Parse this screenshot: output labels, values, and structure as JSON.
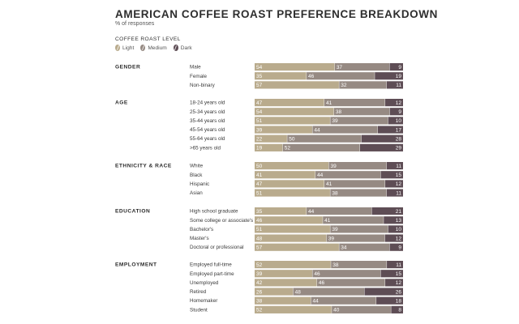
{
  "title": "AMERICAN COFFEE ROAST PREFERENCE BREAKDOWN",
  "subtitle": "% of responses",
  "legend": {
    "title": "COFFEE ROAST LEVEL",
    "items": [
      {
        "label": "Light",
        "color": "#b9ab8d"
      },
      {
        "label": "Medium",
        "color": "#968a83"
      },
      {
        "label": "Dark",
        "color": "#5e4d55"
      }
    ]
  },
  "chart_data": {
    "type": "bar",
    "orientation": "horizontal",
    "stacked": true,
    "unit": "% of responses",
    "series_names": [
      "Light",
      "Medium",
      "Dark"
    ],
    "colors": [
      "#b9ab8d",
      "#968a83",
      "#5e4d55"
    ],
    "groups": [
      {
        "name": "GENDER",
        "rows": [
          {
            "label": "Male",
            "values": [
              54,
              37,
              9
            ]
          },
          {
            "label": "Female",
            "values": [
              35,
              46,
              19
            ]
          },
          {
            "label": "Non-binary",
            "values": [
              57,
              32,
              11
            ]
          }
        ]
      },
      {
        "name": "AGE",
        "rows": [
          {
            "label": "18-24 years old",
            "values": [
              47,
              41,
              12
            ]
          },
          {
            "label": "25-34 years old",
            "values": [
              54,
              38,
              9
            ]
          },
          {
            "label": "35-44 years old",
            "values": [
              51,
              39,
              10
            ]
          },
          {
            "label": "45-54 years old",
            "values": [
              39,
              44,
              17
            ]
          },
          {
            "label": "55-64 years old",
            "values": [
              22,
              50,
              28
            ]
          },
          {
            "label": ">65 years old",
            "values": [
              19,
              52,
              29
            ]
          }
        ]
      },
      {
        "name": "ETHNICITY & RACE",
        "rows": [
          {
            "label": "White",
            "values": [
              50,
              39,
              11
            ]
          },
          {
            "label": "Black",
            "values": [
              41,
              44,
              15
            ]
          },
          {
            "label": "Hispanic",
            "values": [
              47,
              41,
              12
            ]
          },
          {
            "label": "Asian",
            "values": [
              51,
              38,
              11
            ]
          }
        ]
      },
      {
        "name": "EDUCATION",
        "rows": [
          {
            "label": "High school graduate",
            "values": [
              35,
              44,
              21
            ]
          },
          {
            "label": "Some college or associate's",
            "values": [
              46,
              41,
              13
            ]
          },
          {
            "label": "Bachelor's",
            "values": [
              51,
              39,
              10
            ]
          },
          {
            "label": "Master's",
            "values": [
              48,
              39,
              12
            ]
          },
          {
            "label": "Doctoral or professional",
            "values": [
              57,
              34,
              9
            ]
          }
        ]
      },
      {
        "name": "EMPLOYMENT",
        "rows": [
          {
            "label": "Employed full-time",
            "values": [
              52,
              38,
              11
            ]
          },
          {
            "label": "Employed part-time",
            "values": [
              39,
              46,
              15
            ]
          },
          {
            "label": "Unemployed",
            "values": [
              42,
              46,
              12
            ]
          },
          {
            "label": "Retired",
            "values": [
              26,
              48,
              26
            ]
          },
          {
            "label": "Homemaker",
            "values": [
              38,
              44,
              18
            ]
          },
          {
            "label": "Student",
            "values": [
              52,
              40,
              8
            ]
          }
        ]
      }
    ]
  }
}
